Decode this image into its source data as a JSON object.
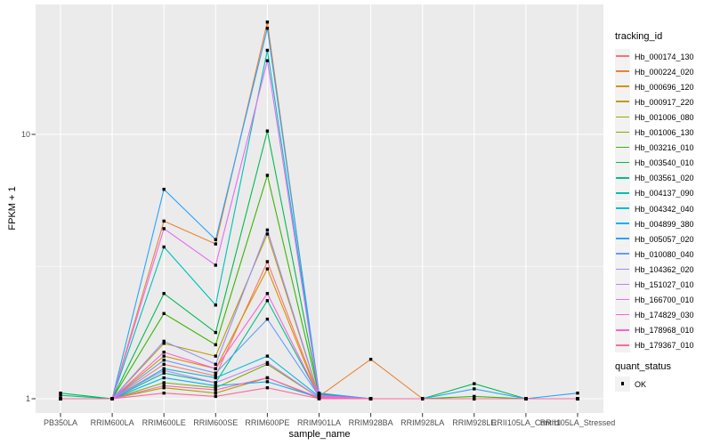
{
  "colors": {
    "panel_bg": "#EBEBEB",
    "grid": "#FFFFFF",
    "tick_mark": "#333333",
    "tick_text": "#4D4D4D",
    "axis_title_text": "#000000",
    "legend_key_bg": "#F2F2F2",
    "point_color": "#000000"
  },
  "legend": {
    "tracking_title": "tracking_id",
    "quant_title": "quant_status",
    "quant_items": [
      {
        "label": "OK",
        "marker": "black-square"
      }
    ]
  },
  "chart_data": {
    "type": "line",
    "title": "",
    "xlabel": "sample_name",
    "ylabel": "FPKM + 1",
    "y_scale": "log10",
    "y_ticks": [
      1,
      10
    ],
    "y_tick_labels": [
      "1",
      "10"
    ],
    "ylim": [
      0.93,
      31
    ],
    "grid": true,
    "legend_position": "right",
    "point_shape": "black-square",
    "point_color": "#000000",
    "categories": [
      "PB350LA",
      "RRIM600LA",
      "RRIM600LE",
      "RRIM600SE",
      "RRIM600PE",
      "RRIM901LA",
      "RRIM928BA",
      "RRIM928LA",
      "RRIM928LE",
      "RRII105LA_Control",
      "RRII105LA_Stressed"
    ],
    "series": [
      {
        "name": "Hb_000174_130",
        "color": "#F8766D",
        "values": [
          1.0,
          1.0,
          1.35,
          1.22,
          3.3,
          1.02,
          1.0,
          1.0,
          1.0,
          1.0,
          1.0
        ]
      },
      {
        "name": "Hb_000224_020",
        "color": "#EA8331",
        "values": [
          1.0,
          1.0,
          4.7,
          3.85,
          26.6,
          1.02,
          1.41,
          1.0,
          1.0,
          1.0,
          1.0
        ]
      },
      {
        "name": "Hb_000696_120",
        "color": "#D89000",
        "values": [
          1.0,
          1.0,
          1.45,
          1.3,
          3.1,
          1.01,
          1.0,
          1.0,
          1.0,
          1.0,
          1.0
        ]
      },
      {
        "name": "Hb_000917_220",
        "color": "#C09B00",
        "values": [
          1.0,
          1.0,
          1.62,
          1.45,
          4.2,
          1.02,
          1.0,
          1.0,
          1.0,
          1.0,
          1.0
        ]
      },
      {
        "name": "Hb_001006_080",
        "color": "#A3A500",
        "values": [
          1.0,
          1.0,
          1.1,
          1.05,
          1.2,
          1.0,
          1.0,
          1.0,
          1.0,
          1.0,
          1.0
        ]
      },
      {
        "name": "Hb_001006_130",
        "color": "#7CAE00",
        "values": [
          1.0,
          1.0,
          1.15,
          1.1,
          1.35,
          1.01,
          1.0,
          1.0,
          1.0,
          1.0,
          1.0
        ]
      },
      {
        "name": "Hb_003216_010",
        "color": "#39B600",
        "values": [
          1.0,
          1.0,
          2.1,
          1.6,
          7.0,
          1.03,
          1.0,
          1.0,
          1.02,
          1.0,
          1.0
        ]
      },
      {
        "name": "Hb_003540_010",
        "color": "#00BB4E",
        "values": [
          1.05,
          1.0,
          2.5,
          1.78,
          10.3,
          1.04,
          1.0,
          1.0,
          1.14,
          1.0,
          1.0
        ]
      },
      {
        "name": "Hb_003561_020",
        "color": "#00C087",
        "values": [
          1.03,
          1.0,
          1.25,
          1.15,
          2.35,
          1.02,
          1.0,
          1.0,
          1.0,
          1.0,
          1.0
        ]
      },
      {
        "name": "Hb_004137_090",
        "color": "#00C0B6",
        "values": [
          1.0,
          1.0,
          3.75,
          2.26,
          20.8,
          1.05,
          1.0,
          1.0,
          1.0,
          1.0,
          1.0
        ]
      },
      {
        "name": "Hb_004342_040",
        "color": "#00BCD8",
        "values": [
          1.0,
          1.0,
          1.3,
          1.2,
          1.45,
          1.02,
          1.0,
          1.0,
          1.0,
          1.0,
          1.0
        ]
      },
      {
        "name": "Hb_004899_380",
        "color": "#00B3F0",
        "values": [
          1.0,
          1.0,
          1.2,
          1.12,
          1.16,
          1.01,
          1.0,
          1.0,
          1.0,
          1.0,
          1.0
        ]
      },
      {
        "name": "Hb_005057_020",
        "color": "#29A3FF",
        "values": [
          1.0,
          1.0,
          6.2,
          4.0,
          25.2,
          1.05,
          1.0,
          1.0,
          1.09,
          1.0,
          1.05
        ]
      },
      {
        "name": "Hb_010080_040",
        "color": "#619CFF",
        "values": [
          1.0,
          1.0,
          1.4,
          1.25,
          2.0,
          1.02,
          1.0,
          1.0,
          1.0,
          1.0,
          1.0
        ]
      },
      {
        "name": "Hb_104362_020",
        "color": "#9590FF",
        "values": [
          1.0,
          1.0,
          1.65,
          1.35,
          4.35,
          1.02,
          1.0,
          1.0,
          1.0,
          1.0,
          1.0
        ]
      },
      {
        "name": "Hb_151027_010",
        "color": "#C77CFF",
        "values": [
          1.0,
          1.0,
          1.28,
          1.15,
          1.37,
          1.01,
          1.0,
          1.0,
          1.0,
          1.0,
          1.0
        ]
      },
      {
        "name": "Hb_166700_010",
        "color": "#E76BF3",
        "values": [
          1.0,
          1.0,
          4.4,
          3.2,
          19.0,
          1.03,
          1.0,
          1.0,
          1.0,
          1.0,
          1.0
        ]
      },
      {
        "name": "Hb_174829_030",
        "color": "#FA62DB",
        "values": [
          1.0,
          1.0,
          1.5,
          1.3,
          2.5,
          1.02,
          1.0,
          1.0,
          1.0,
          1.0,
          1.0
        ]
      },
      {
        "name": "Hb_178968_010",
        "color": "#FF61C7",
        "values": [
          1.0,
          1.0,
          1.12,
          1.08,
          1.2,
          1.01,
          1.0,
          1.0,
          1.0,
          1.0,
          1.0
        ]
      },
      {
        "name": "Hb_179367_010",
        "color": "#FF689E",
        "values": [
          1.0,
          1.0,
          1.05,
          1.02,
          1.1,
          1.0,
          1.0,
          1.0,
          1.0,
          1.0,
          1.0
        ]
      }
    ]
  }
}
